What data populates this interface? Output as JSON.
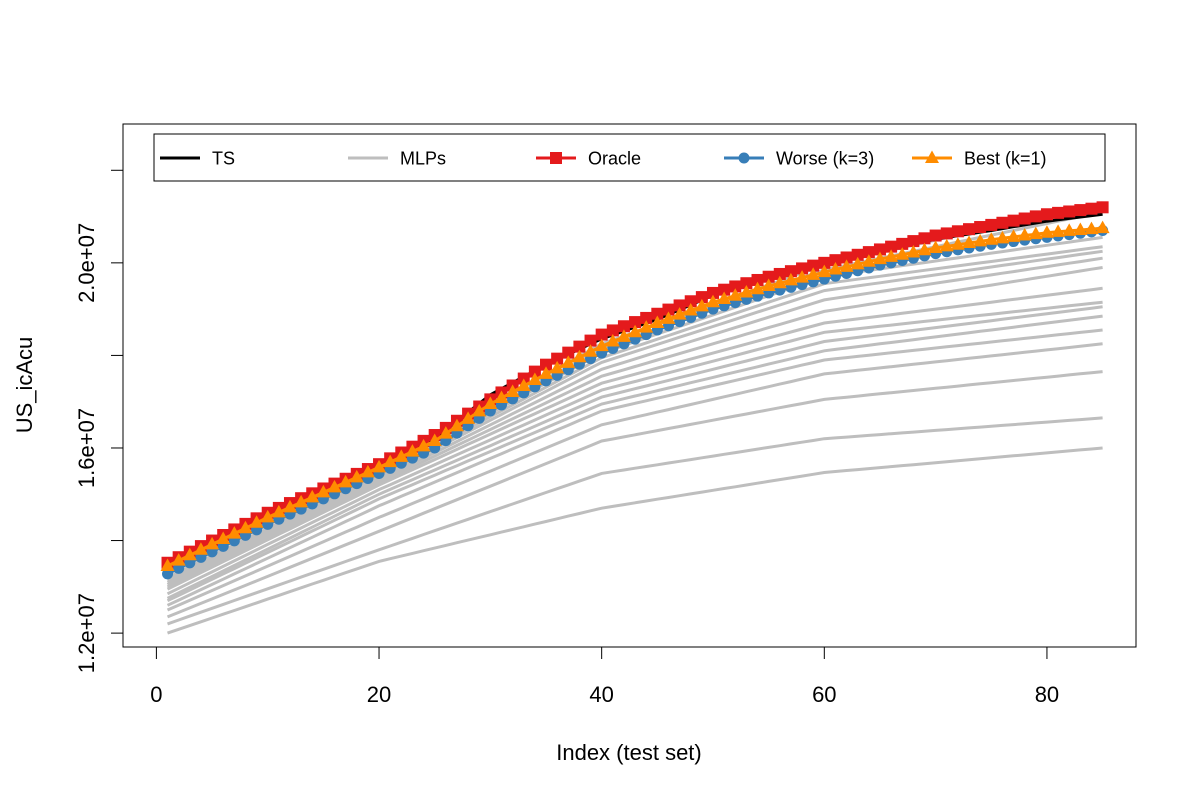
{
  "chart_data": {
    "type": "line",
    "xlabel": "Index (test set)",
    "ylabel": "US_icAcu",
    "xlim": [
      -3,
      88
    ],
    "ylim": [
      11700000,
      23000000
    ],
    "x_ticks": [
      0,
      20,
      40,
      60,
      80
    ],
    "x_tick_labels": [
      "0",
      "20",
      "40",
      "60",
      "80"
    ],
    "y_ticks": [
      12000000,
      14000000,
      16000000,
      18000000,
      20000000,
      22000000
    ],
    "y_tick_labels": [
      "1.2e+07",
      "",
      "1.6e+07",
      "",
      "2.0e+07",
      ""
    ],
    "legend_position": "top",
    "x": [
      1,
      85
    ],
    "series": [
      {
        "name": "TS",
        "color": "#000000",
        "marker": "none",
        "points": [
          [
            1,
            13500000
          ],
          [
            10,
            14530000
          ],
          [
            20,
            15600000
          ],
          [
            25,
            16200000
          ],
          [
            30,
            17150000
          ],
          [
            35,
            17800000
          ],
          [
            40,
            18360000
          ],
          [
            45,
            18780000
          ],
          [
            50,
            19300000
          ],
          [
            55,
            19650000
          ],
          [
            60,
            19980000
          ],
          [
            65,
            20260000
          ],
          [
            70,
            20510000
          ],
          [
            75,
            20700000
          ],
          [
            80,
            20900000
          ],
          [
            85,
            21050000
          ]
        ]
      },
      {
        "name": "MLPs",
        "color": "#bebebe",
        "marker": "none",
        "lines": [
          [
            [
              1,
              12000000
            ],
            [
              20,
              13550000
            ],
            [
              40,
              14700000
            ],
            [
              60,
              15470000
            ],
            [
              85,
              16000000
            ]
          ],
          [
            [
              1,
              12200000
            ],
            [
              20,
              13800000
            ],
            [
              40,
              15450000
            ],
            [
              60,
              16200000
            ],
            [
              85,
              16650000
            ]
          ],
          [
            [
              1,
              12350000
            ],
            [
              20,
              14200000
            ],
            [
              40,
              16150000
            ],
            [
              60,
              17050000
            ],
            [
              85,
              17650000
            ]
          ],
          [
            [
              1,
              12500000
            ],
            [
              20,
              14500000
            ],
            [
              40,
              16500000
            ],
            [
              60,
              17600000
            ],
            [
              85,
              18250000
            ]
          ],
          [
            [
              1,
              12600000
            ],
            [
              20,
              14750000
            ],
            [
              40,
              16800000
            ],
            [
              60,
              17900000
            ],
            [
              85,
              18550000
            ]
          ],
          [
            [
              1,
              12700000
            ],
            [
              20,
              14900000
            ],
            [
              40,
              16950000
            ],
            [
              60,
              18100000
            ],
            [
              85,
              18850000
            ]
          ],
          [
            [
              1,
              12750000
            ],
            [
              20,
              15000000
            ],
            [
              40,
              17100000
            ],
            [
              60,
              18300000
            ],
            [
              85,
              19050000
            ]
          ],
          [
            [
              1,
              12850000
            ],
            [
              20,
              15100000
            ],
            [
              40,
              17250000
            ],
            [
              60,
              18500000
            ],
            [
              85,
              19150000
            ]
          ],
          [
            [
              1,
              12950000
            ],
            [
              20,
              15200000
            ],
            [
              40,
              17400000
            ],
            [
              60,
              18700000
            ],
            [
              85,
              19450000
            ]
          ],
          [
            [
              1,
              13000000
            ],
            [
              20,
              15250000
            ],
            [
              40,
              17550000
            ],
            [
              60,
              18950000
            ],
            [
              85,
              19900000
            ]
          ],
          [
            [
              1,
              13050000
            ],
            [
              20,
              15300000
            ],
            [
              40,
              17700000
            ],
            [
              60,
              19200000
            ],
            [
              85,
              20100000
            ]
          ],
          [
            [
              1,
              13100000
            ],
            [
              20,
              15350000
            ],
            [
              40,
              17850000
            ],
            [
              60,
              19400000
            ],
            [
              85,
              20250000
            ]
          ],
          [
            [
              1,
              13150000
            ],
            [
              20,
              15400000
            ],
            [
              40,
              17950000
            ],
            [
              60,
              19550000
            ],
            [
              85,
              20350000
            ]
          ],
          [
            [
              1,
              13200000
            ],
            [
              20,
              15450000
            ],
            [
              40,
              18050000
            ],
            [
              60,
              19700000
            ],
            [
              85,
              20550000
            ]
          ],
          [
            [
              1,
              13300000
            ],
            [
              20,
              15500000
            ],
            [
              40,
              18150000
            ],
            [
              60,
              19850000
            ],
            [
              85,
              21100000
            ]
          ],
          [
            [
              1,
              13400000
            ],
            [
              20,
              15550000
            ],
            [
              40,
              18250000
            ],
            [
              60,
              19950000
            ],
            [
              85,
              21300000
            ]
          ]
        ]
      },
      {
        "name": "Oracle",
        "color": "#e41a1c",
        "marker": "square",
        "points": [
          [
            1,
            13520000
          ],
          [
            10,
            14600000
          ],
          [
            20,
            15650000
          ],
          [
            25,
            16280000
          ],
          [
            30,
            17050000
          ],
          [
            35,
            17800000
          ],
          [
            40,
            18450000
          ],
          [
            45,
            18900000
          ],
          [
            50,
            19350000
          ],
          [
            55,
            19700000
          ],
          [
            60,
            20000000
          ],
          [
            65,
            20290000
          ],
          [
            70,
            20590000
          ],
          [
            75,
            20820000
          ],
          [
            80,
            21050000
          ],
          [
            85,
            21200000
          ]
        ]
      },
      {
        "name": "Worse (k=3)",
        "color": "#377eb8",
        "marker": "circle",
        "points": [
          [
            1,
            13280000
          ],
          [
            10,
            14350000
          ],
          [
            20,
            15450000
          ],
          [
            25,
            16000000
          ],
          [
            30,
            16800000
          ],
          [
            35,
            17450000
          ],
          [
            40,
            18050000
          ],
          [
            45,
            18550000
          ],
          [
            50,
            19000000
          ],
          [
            55,
            19350000
          ],
          [
            60,
            19650000
          ],
          [
            65,
            19950000
          ],
          [
            70,
            20200000
          ],
          [
            75,
            20400000
          ],
          [
            80,
            20550000
          ],
          [
            85,
            20700000
          ]
        ]
      },
      {
        "name": "Best (k=1)",
        "color": "#ff8c00",
        "marker": "triangle",
        "points": [
          [
            1,
            13450000
          ],
          [
            10,
            14500000
          ],
          [
            20,
            15580000
          ],
          [
            25,
            16150000
          ],
          [
            30,
            16950000
          ],
          [
            35,
            17600000
          ],
          [
            40,
            18200000
          ],
          [
            45,
            18700000
          ],
          [
            50,
            19150000
          ],
          [
            55,
            19500000
          ],
          [
            60,
            19800000
          ],
          [
            65,
            20080000
          ],
          [
            70,
            20320000
          ],
          [
            75,
            20500000
          ],
          [
            80,
            20650000
          ],
          [
            85,
            20750000
          ]
        ]
      }
    ]
  }
}
